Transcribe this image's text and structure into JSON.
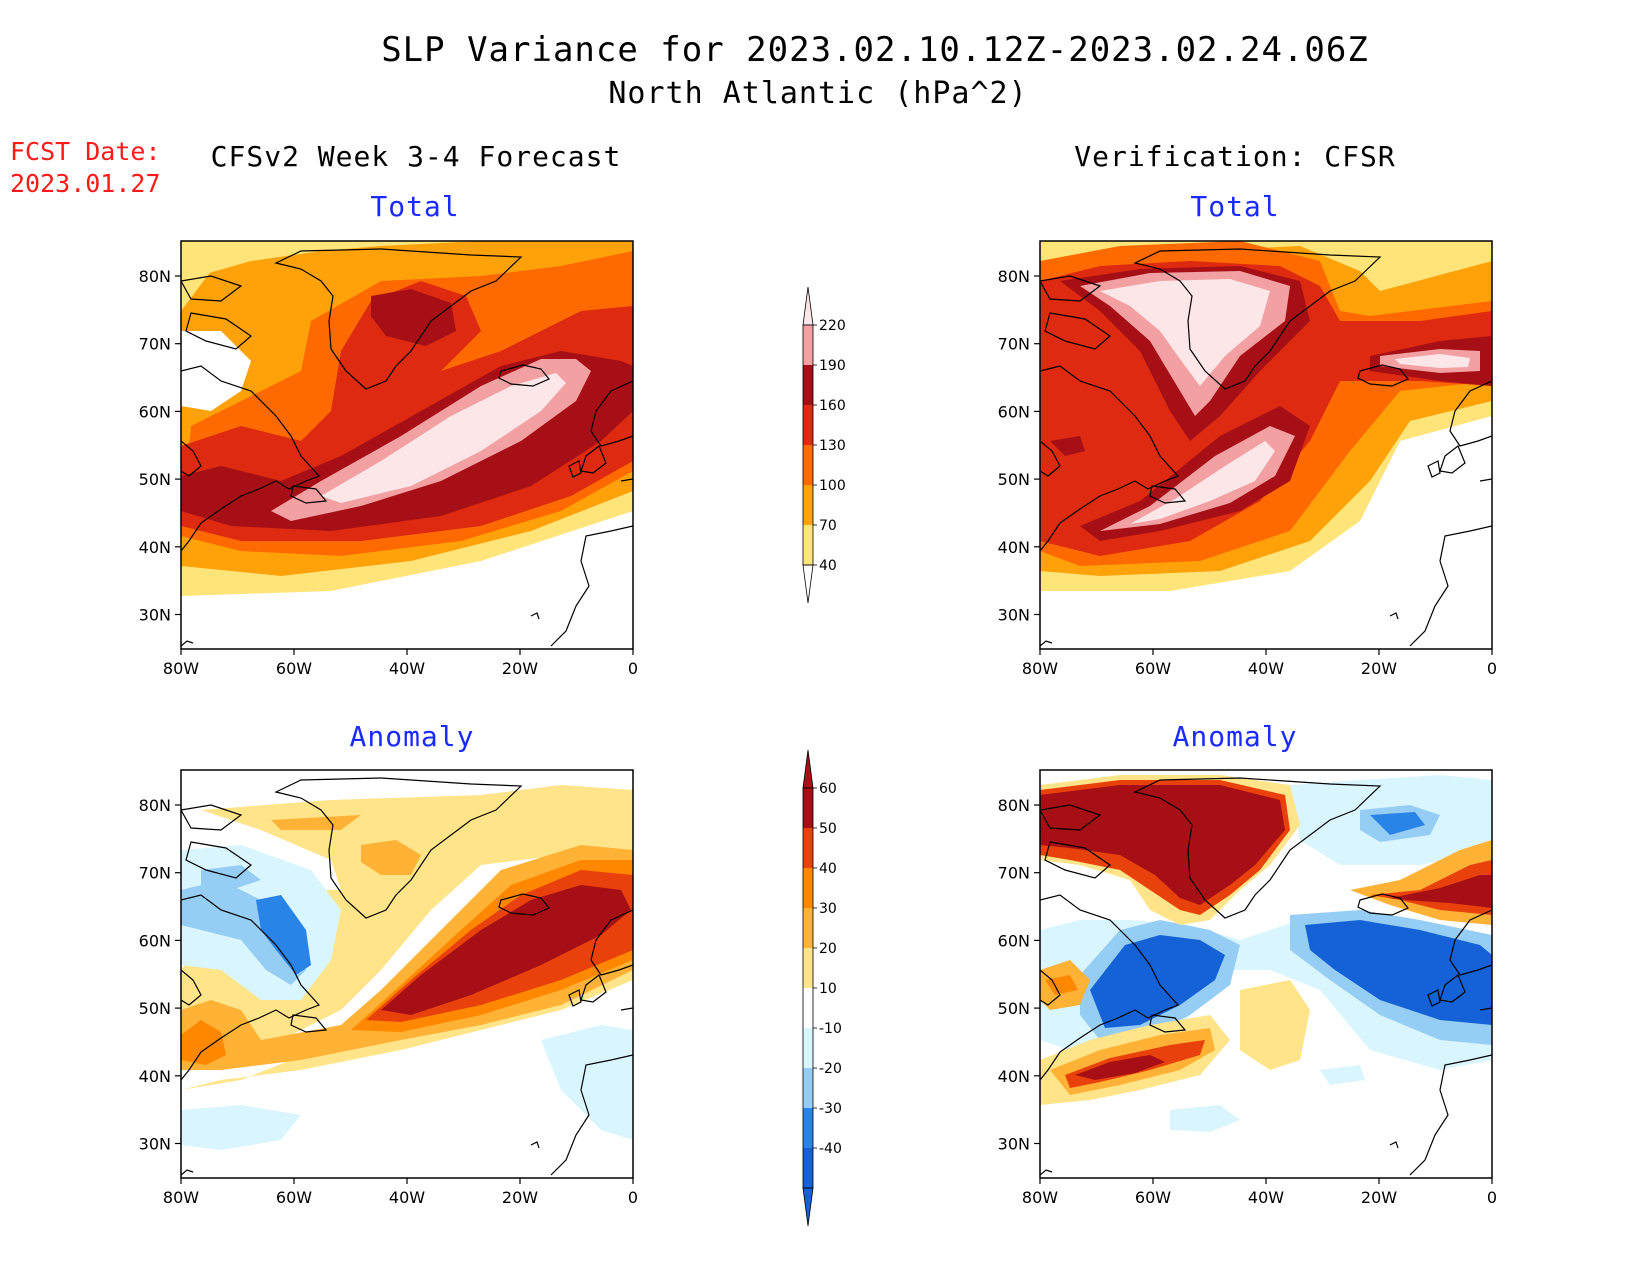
{
  "header": {
    "title": "SLP Variance for 2023.02.10.12Z-2023.02.24.06Z",
    "subtitle": "North Atlantic (hPa^2)",
    "fcst_label": "FCST Date:",
    "fcst_date": "2023.01.27"
  },
  "columns": {
    "left": "CFSv2 Week 3-4 Forecast",
    "right": "Verification: CFSR"
  },
  "panels": {
    "fc_total": "Total",
    "vr_total": "Total",
    "fc_anom": "Anomaly",
    "vr_anom": "Anomaly"
  },
  "axes": {
    "lat_ticks": [
      "80N",
      "70N",
      "60N",
      "50N",
      "40N",
      "30N"
    ],
    "lon_ticks": [
      "80W",
      "60W",
      "40W",
      "20W",
      "0"
    ]
  },
  "colorbars": {
    "total": {
      "levels": [
        "220",
        "190",
        "160",
        "130",
        "100",
        "70",
        "40"
      ],
      "colors": [
        "#f2a0a2",
        "#a50f15",
        "#dd2a10",
        "#ff6a00",
        "#ffa20a",
        "#ffe47a"
      ]
    },
    "anomaly": {
      "levels": [
        "60",
        "50",
        "40",
        "30",
        "20",
        "10",
        "-10",
        "-20",
        "-30",
        "-40"
      ],
      "colors": [
        "#a50f15",
        "#e8410c",
        "#ff8800",
        "#ffb236",
        "#ffe48a",
        "#ffffff",
        "#d9f6ff",
        "#96cdf5",
        "#2a83e6",
        "#1462d6"
      ]
    }
  },
  "colors": {
    "panel_title": "#1a2bff",
    "fcst_date": "#ff1a1a"
  }
}
